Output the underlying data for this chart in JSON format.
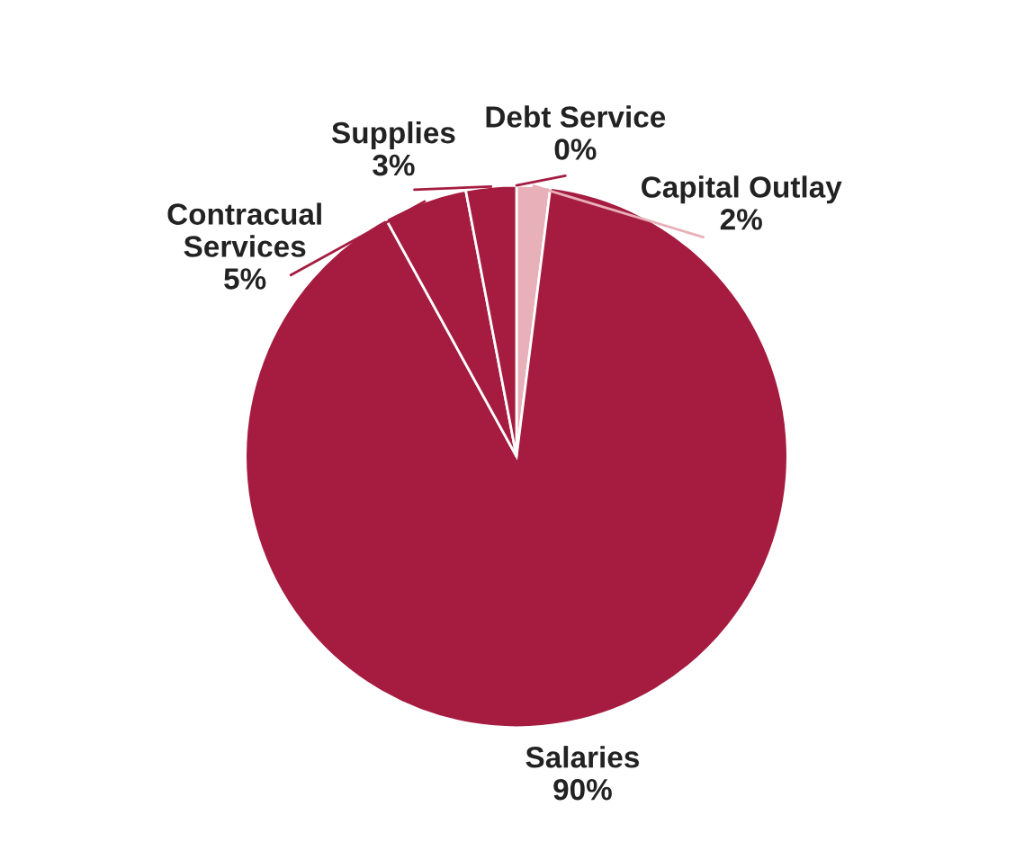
{
  "chart_data": {
    "type": "pie",
    "categories": [
      "Debt Service",
      "Capital Outlay",
      "Salaries",
      "Contracual Services",
      "Supplies"
    ],
    "values": [
      0,
      2,
      90,
      5,
      3
    ],
    "colors": [
      "#a51c40",
      "#e8b0b8",
      "#a51c40",
      "#a51c40",
      "#a51c40"
    ],
    "value_labels": [
      "0%",
      "2%",
      "90%",
      "5%",
      "3%"
    ]
  }
}
